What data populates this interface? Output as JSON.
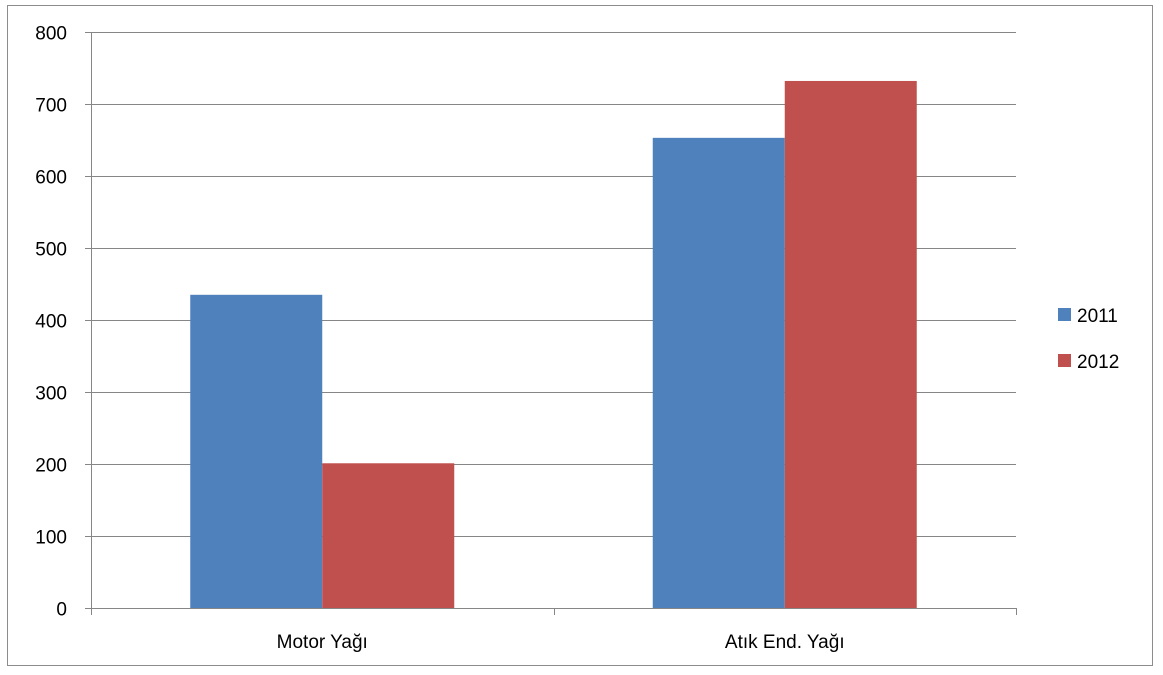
{
  "chart_data": {
    "type": "bar",
    "categories": [
      "Motor Yağı",
      "Atık End. Yağı"
    ],
    "series": [
      {
        "name": "2011",
        "values": [
          435,
          653
        ],
        "color": "#4f81bd"
      },
      {
        "name": "2012",
        "values": [
          201,
          732
        ],
        "color": "#c0504d"
      }
    ],
    "ylim": [
      0,
      800
    ],
    "yticks": [
      0,
      100,
      200,
      300,
      400,
      500,
      600,
      700,
      800
    ],
    "grid": true,
    "legend_position": "right"
  }
}
